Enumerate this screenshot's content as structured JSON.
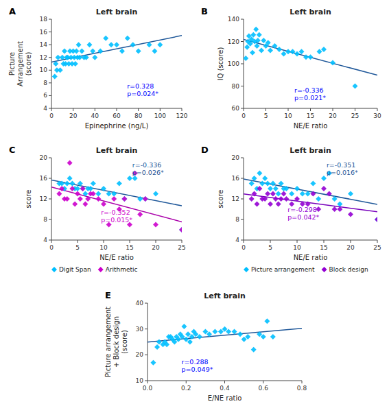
{
  "chart_data": [
    {
      "type": "scatter",
      "title": "Left brain",
      "panel_label": "A",
      "xlabel": "Epinephrine (ng/L)",
      "ylabel": "Picture\nArrangement\n(score)",
      "xlim": [
        0,
        120
      ],
      "ylim": [
        4,
        18
      ],
      "xticks": [
        0,
        20,
        40,
        60,
        80,
        100,
        120
      ],
      "yticks": [
        4,
        6,
        8,
        10,
        12,
        14,
        16,
        18
      ],
      "series": [
        {
          "color": "#00BFFF",
          "marker": "diamond",
          "x": [
            3,
            4,
            5,
            6,
            8,
            10,
            11,
            12,
            13,
            14,
            15,
            16,
            17,
            18,
            19,
            20,
            21,
            22,
            23,
            24,
            25,
            26,
            28,
            30,
            32,
            35,
            38,
            40,
            45,
            50,
            55,
            60,
            65,
            70,
            75,
            80,
            90,
            95,
            100
          ],
          "values": [
            9,
            11,
            10,
            12,
            10,
            12,
            11,
            13,
            11,
            12,
            12,
            11,
            13,
            12,
            11,
            13,
            12,
            11,
            13,
            12,
            14,
            12,
            13,
            12,
            12,
            14,
            13,
            12,
            13,
            15,
            14,
            14,
            13,
            15,
            14,
            13,
            14,
            13,
            14
          ]
        },
        {
          "type": "line",
          "color": "#1E5799",
          "x": [
            0,
            120
          ],
          "values": [
            11.257,
            15.436
          ]
        }
      ],
      "annotations": [
        {
          "text": "r=0.328\np=0.024*",
          "color": "blue"
        }
      ]
    },
    {
      "type": "scatter",
      "title": "Left brain",
      "panel_label": "B",
      "xlabel": "NE/E ratio",
      "ylabel": "IQ (score)",
      "xlim": [
        0,
        30
      ],
      "ylim": [
        60,
        140
      ],
      "xticks": [
        0,
        5,
        10,
        15,
        20,
        25,
        30
      ],
      "yticks": [
        60,
        80,
        100,
        120,
        140
      ],
      "series": [
        {
          "color": "#00BFFF",
          "marker": "diamond",
          "x": [
            0.5,
            0.8,
            1.0,
            1.2,
            1.5,
            1.8,
            2.0,
            2.2,
            2.5,
            2.8,
            3.0,
            3.2,
            3.5,
            4.0,
            4.5,
            5.0,
            5.5,
            6.0,
            7.0,
            8.0,
            9.0,
            10.0,
            11.0,
            12.0,
            13.0,
            14.0,
            15.0,
            17.0,
            18.0,
            20.0,
            25.0
          ],
          "values": [
            105,
            115,
            120,
            125,
            118,
            122,
            110,
            126,
            120,
            131,
            116,
            121,
            126,
            112,
            121,
            116,
            119,
            112,
            116,
            113,
            109,
            111,
            111,
            109,
            111,
            106,
            106,
            111,
            113,
            101,
            80
          ]
        },
        {
          "type": "line",
          "color": "#1E5799",
          "x": [
            0,
            30
          ],
          "values": [
            121.878,
            89.764
          ]
        }
      ],
      "annotations": [
        {
          "text": "r=-0.336\np=0.021*",
          "color": "blue"
        }
      ]
    },
    {
      "type": "scatter",
      "title": "Left brain",
      "panel_label": "C",
      "xlabel": "NE/E ratio",
      "ylabel": "score",
      "xlim": [
        0,
        25
      ],
      "ylim": [
        4,
        20
      ],
      "xticks": [
        0,
        5,
        10,
        15,
        20,
        25
      ],
      "yticks": [
        4,
        8,
        12,
        16,
        20
      ],
      "legend": "bottom",
      "series": [
        {
          "name": "Digit Span",
          "color": "#00BFFF",
          "marker": "diamond",
          "x": [
            1.5,
            2.0,
            2.5,
            3.0,
            3.5,
            4.0,
            4.5,
            5.0,
            5.5,
            6.0,
            6.5,
            7.0,
            7.5,
            8.0,
            9.0,
            10.0,
            11.0,
            12.0,
            13.0,
            14.0,
            15.0,
            16.0,
            17.0,
            18.0,
            20.0,
            25.0
          ],
          "values": [
            15,
            15,
            14,
            15,
            16,
            15,
            14,
            14,
            15,
            14,
            13,
            14,
            14,
            15,
            13,
            14,
            13,
            13,
            15,
            12,
            16,
            16,
            12,
            12,
            13,
            6
          ]
        },
        {
          "name": "Arithmetic",
          "color": "#CC00CC",
          "marker": "diamond",
          "x": [
            1.5,
            2.0,
            2.5,
            3.0,
            3.5,
            4.0,
            4.5,
            5.0,
            5.5,
            6.0,
            6.5,
            7.0,
            7.5,
            8.0,
            9.0,
            10.0,
            11.0,
            12.0,
            13.0,
            14.0,
            15.0,
            16.0,
            17.0,
            18.0,
            20.0,
            25.0
          ],
          "values": [
            13,
            14,
            12,
            12,
            19,
            14,
            11,
            13,
            12,
            14,
            11,
            12,
            13,
            13,
            12,
            11,
            7,
            12,
            10,
            12,
            7,
            17,
            9,
            12,
            7,
            6
          ]
        },
        {
          "type": "line",
          "color": "#1E5799",
          "x": [
            0,
            25
          ],
          "values": [
            15.67,
            10.658
          ]
        },
        {
          "type": "line",
          "color": "#AA00AA",
          "x": [
            0,
            25
          ],
          "values": [
            14.294,
            7.534
          ]
        }
      ],
      "annotations": [
        {
          "text": "r=-0.336\np=0.026*",
          "color": "#1E5799"
        },
        {
          "text": "r=-0.352\np=0.015*",
          "color": "#CC00CC"
        }
      ]
    },
    {
      "type": "scatter",
      "title": "Left brain",
      "panel_label": "D",
      "xlabel": "NE/E ratio",
      "ylabel": "score",
      "xlim": [
        0,
        25
      ],
      "ylim": [
        4,
        20
      ],
      "xticks": [
        0,
        5,
        10,
        15,
        20,
        25
      ],
      "yticks": [
        4,
        8,
        12,
        16,
        20
      ],
      "legend": "bottom",
      "series": [
        {
          "name": "Picture arrangement",
          "color": "#00BFFF",
          "marker": "diamond",
          "x": [
            1.5,
            2.0,
            2.5,
            3.0,
            3.5,
            4.0,
            4.5,
            5.0,
            5.5,
            6.0,
            6.5,
            7.0,
            7.5,
            8.0,
            9.0,
            10.0,
            11.0,
            12.0,
            13.0,
            14.0,
            15.0,
            16.0,
            17.0,
            18.0,
            20.0,
            25.0
          ],
          "values": [
            15,
            16,
            14,
            17,
            15,
            16,
            15,
            14,
            15,
            14,
            13,
            15,
            14,
            14,
            13,
            14,
            13,
            13,
            15,
            12,
            16,
            17,
            12,
            11,
            13,
            8
          ]
        },
        {
          "name": "Block design",
          "color": "#9400D3",
          "marker": "diamond",
          "x": [
            1.5,
            2.0,
            2.5,
            3.0,
            3.5,
            4.0,
            4.5,
            5.0,
            5.5,
            6.0,
            6.5,
            7.0,
            7.5,
            8.0,
            9.0,
            10.0,
            11.0,
            12.0,
            13.0,
            14.0,
            15.0,
            16.0,
            17.0,
            18.0,
            20.0,
            25.0
          ],
          "values": [
            12,
            13,
            11,
            14,
            12,
            12,
            13,
            11,
            13,
            12,
            11,
            12,
            13,
            12,
            11,
            12,
            11,
            11,
            13,
            10,
            14,
            13,
            10,
            10,
            9,
            8
          ]
        },
        {
          "type": "line",
          "color": "#1E5799",
          "x": [
            0,
            25
          ],
          "values": [
            15.87,
            10.939
          ]
        },
        {
          "type": "line",
          "color": "#7700BB",
          "x": [
            0,
            25
          ],
          "values": [
            12.971,
            9.498
          ]
        }
      ],
      "annotations": [
        {
          "text": "r=-0.351\np=0.016*",
          "color": "#1E5799"
        },
        {
          "text": "r=-0.298\np=0.042*",
          "color": "#9400D3"
        }
      ]
    },
    {
      "type": "scatter",
      "title": "Left brain",
      "panel_label": "E",
      "xlabel": "E/NE ratio",
      "ylabel": "Picture arrangement\n+ Block design\n(score)",
      "xlim": [
        0,
        0.8
      ],
      "ylim": [
        10,
        40
      ],
      "xticks": [
        {
          "value": 0,
          "label": "0.0"
        },
        0.2,
        0.4,
        0.6,
        0.8
      ],
      "yticks": [
        10,
        20,
        30,
        40
      ],
      "series": [
        {
          "color": "#00BFFF",
          "marker": "diamond",
          "x": [
            0.03,
            0.05,
            0.06,
            0.08,
            0.09,
            0.1,
            0.11,
            0.12,
            0.13,
            0.14,
            0.15,
            0.16,
            0.17,
            0.18,
            0.19,
            0.2,
            0.21,
            0.22,
            0.23,
            0.24,
            0.25,
            0.27,
            0.3,
            0.32,
            0.35,
            0.38,
            0.4,
            0.42,
            0.45,
            0.48,
            0.5,
            0.52,
            0.55,
            0.58,
            0.6,
            0.62,
            0.65
          ],
          "values": [
            17,
            23,
            25,
            24,
            25,
            24,
            27,
            27,
            26,
            25,
            27,
            26,
            28,
            27,
            31,
            26,
            28,
            25,
            27,
            29,
            28,
            27,
            29,
            28,
            29,
            29,
            30,
            29,
            29,
            28,
            26,
            27,
            22,
            28,
            27,
            33,
            27
          ]
        },
        {
          "type": "line",
          "color": "#1E5799",
          "x": [
            0,
            0.8
          ],
          "values": [
            24.966,
            30.243
          ]
        }
      ],
      "annotations": [
        {
          "text": "r=0.288\np=0.049*",
          "color": "blue"
        }
      ]
    }
  ]
}
